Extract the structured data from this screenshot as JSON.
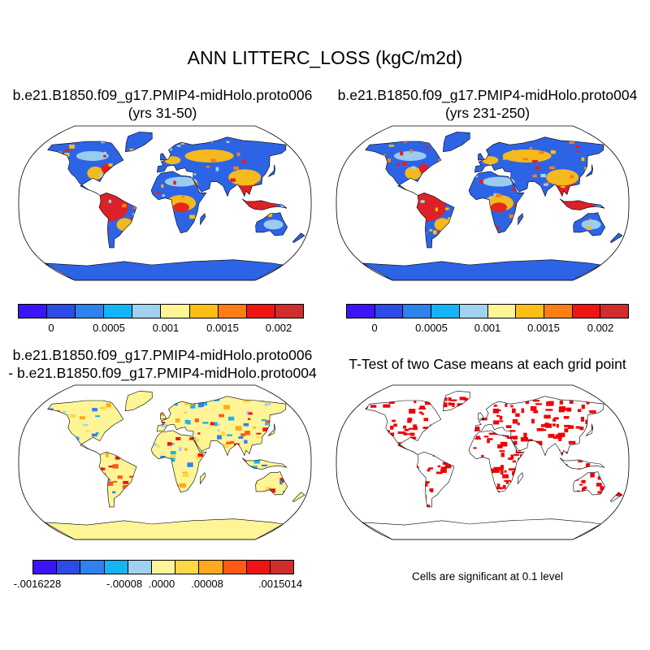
{
  "main_title": "ANN LITTERC_LOSS (kgC/m2d)",
  "panels": {
    "top_left": {
      "title_line1": "b.e21.B1850.f09_g17.PMIP4-midHolo.proto006",
      "title_line2": "(yrs 31-50)"
    },
    "top_right": {
      "title_line1": "b.e21.B1850.f09_g17.PMIP4-midHolo.proto004",
      "title_line2": "(yrs 231-250)"
    },
    "bottom_left": {
      "title_line1": "b.e21.B1850.f09_g17.PMIP4-midHolo.proto006",
      "title_line2": "- b.e21.B1850.f09_g17.PMIP4-midHolo.proto004"
    },
    "bottom_right": {
      "title_line1": "T-Test of two Case means at each grid point",
      "note": "Cells are significant at 0.1 level"
    }
  },
  "colorbars": {
    "case": {
      "colors": [
        "#3c14f5",
        "#2d4be6",
        "#2d82f0",
        "#14b4f5",
        "#a0d2f0",
        "#fff596",
        "#ffbe14",
        "#ff7d14",
        "#f01414",
        "#d22d2d"
      ],
      "tick_labels": [
        "0",
        "0.0005",
        "0.001",
        "0.0015",
        "0.002"
      ]
    },
    "diff": {
      "colors": [
        "#3c14f5",
        "#2d4be6",
        "#2d82f0",
        "#14b4f5",
        "#a0d2f0",
        "#fff596",
        "#ffd746",
        "#ffaa1e",
        "#ff5a14",
        "#f01414",
        "#d22d2d"
      ],
      "tick_labels": [
        "-.0016228",
        "-.00008",
        ".0000",
        ".00008",
        ".0015014"
      ]
    }
  },
  "map_colors": {
    "land_low": "#2d64e6",
    "land_arid": "#a0d2f0",
    "tropical_high": "#e61e1e",
    "mid": "#ffbe14",
    "diff_neutral": "#fff596",
    "significant": "#f00000",
    "ocean": "#ffffff",
    "frame": "#000000"
  }
}
